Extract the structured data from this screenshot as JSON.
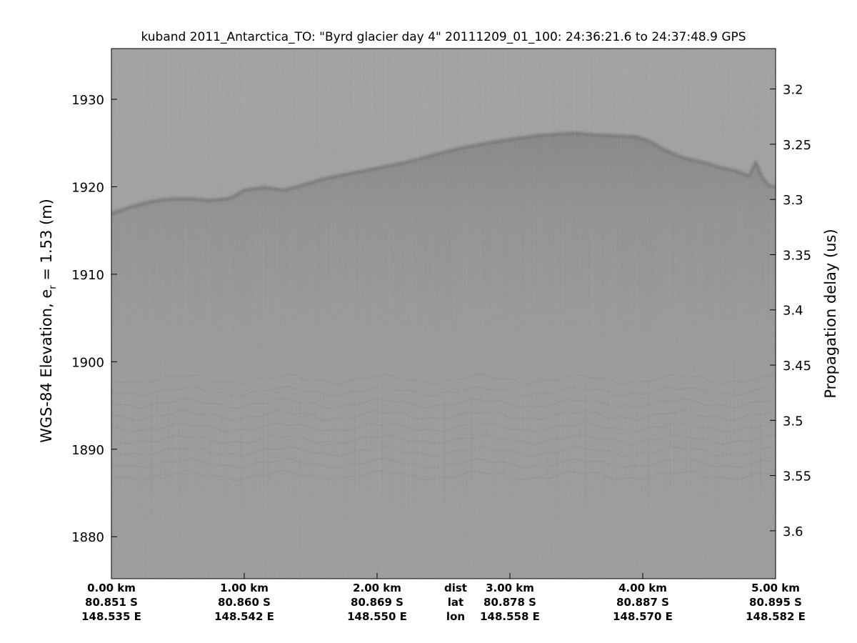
{
  "chart_data": {
    "type": "heatmap",
    "title": "kuband 2011_Antarctica_TO: \"Byrd glacier day 4\"  20111209_01_100: 24:36:21.6 to 24:37:48.9 GPS",
    "ylabel": "WGS-84 Elevation, e",
    "ylabel_sub": "r",
    "ylabel_tail": " = 1.53 (m)",
    "ylabel_right": "Propagation delay (us)",
    "colormap": "gray",
    "grid": false,
    "x_range_km": [
      0,
      5
    ],
    "ylim": [
      1875.2,
      1935.8
    ],
    "y_ticks": [
      1880,
      1890,
      1900,
      1910,
      1920,
      1930
    ],
    "right_ylim_us": [
      3.1634,
      3.6434
    ],
    "right_ticks": [
      "3.2",
      "3.25",
      "3.3",
      "3.35",
      "3.4",
      "3.45",
      "3.5",
      "3.55",
      "3.6"
    ],
    "x_ticks": [
      {
        "km": 0.0,
        "dist": "0.00 km",
        "lat": "80.851 S",
        "lon": "148.535 E"
      },
      {
        "km": 1.0,
        "dist": "1.00 km",
        "lat": "80.860 S",
        "lon": "148.542 E"
      },
      {
        "km": 2.0,
        "dist": "2.00 km",
        "lat": "80.869 S",
        "lon": "148.550 E"
      },
      {
        "km": 3.0,
        "dist": "3.00 km",
        "lat": "80.878 S",
        "lon": "148.558 E"
      },
      {
        "km": 4.0,
        "dist": "4.00 km",
        "lat": "80.887 S",
        "lon": "148.570 E"
      },
      {
        "km": 5.0,
        "dist": "5.00 km",
        "lat": "80.895 S",
        "lon": "148.582 E"
      }
    ],
    "row_labels": {
      "km": 2.5,
      "dist": "dist",
      "lat": "lat",
      "lon": "lon"
    },
    "surface": {
      "x_km": [
        0.0,
        0.15,
        0.3,
        0.45,
        0.6,
        0.75,
        0.9,
        1.0,
        1.15,
        1.3,
        1.45,
        1.6,
        1.8,
        2.0,
        2.2,
        2.4,
        2.6,
        2.8,
        3.0,
        3.2,
        3.35,
        3.5,
        3.65,
        3.8,
        3.95,
        4.05,
        4.15,
        4.3,
        4.45,
        4.6,
        4.7,
        4.8,
        4.85,
        4.9,
        4.95,
        5.0
      ],
      "elev_m": [
        1916.9,
        1917.7,
        1918.3,
        1918.6,
        1918.6,
        1918.4,
        1918.7,
        1919.6,
        1919.9,
        1919.6,
        1920.2,
        1920.9,
        1921.5,
        1922.1,
        1922.7,
        1923.5,
        1924.3,
        1924.9,
        1925.4,
        1925.8,
        1926.0,
        1926.1,
        1925.9,
        1925.8,
        1925.7,
        1925.2,
        1924.3,
        1923.3,
        1922.8,
        1922.1,
        1921.8,
        1921.2,
        1922.7,
        1921.0,
        1920.1,
        1920.0
      ]
    },
    "multiple_band_elev_m": [
      1887,
      1898
    ]
  }
}
